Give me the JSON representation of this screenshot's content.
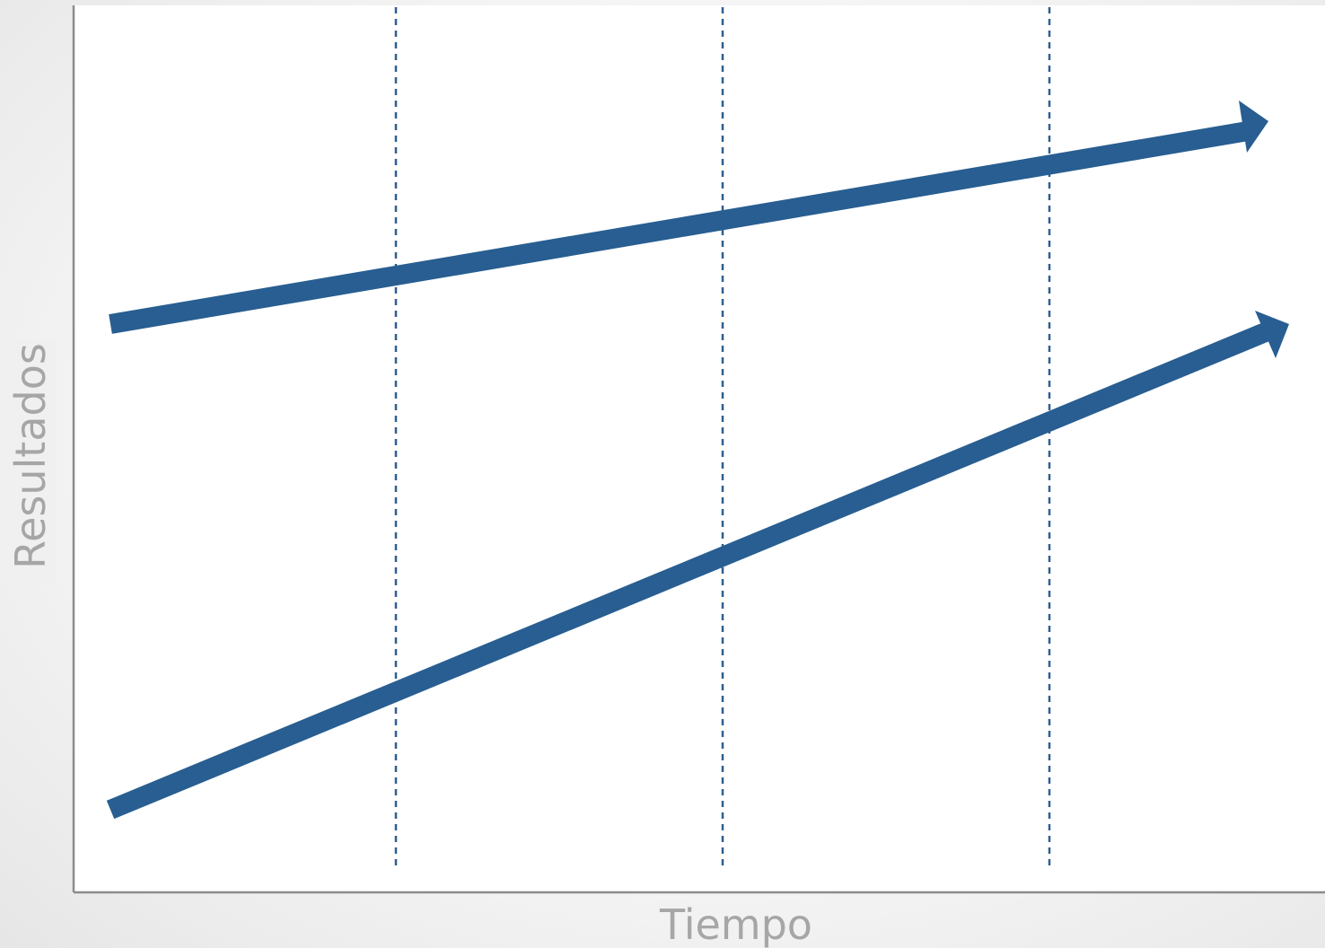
{
  "diagram": {
    "x_axis_label": "Tiempo",
    "y_axis_label": "Resultados",
    "guide_line_count": 3,
    "arrow_count": 2,
    "colors": {
      "arrow": "#285e91",
      "guide_line": "#2f5f8f",
      "axis": "#8c8c8c",
      "axis_label": "#a6a6a6",
      "plot_background": "#ffffff"
    }
  }
}
